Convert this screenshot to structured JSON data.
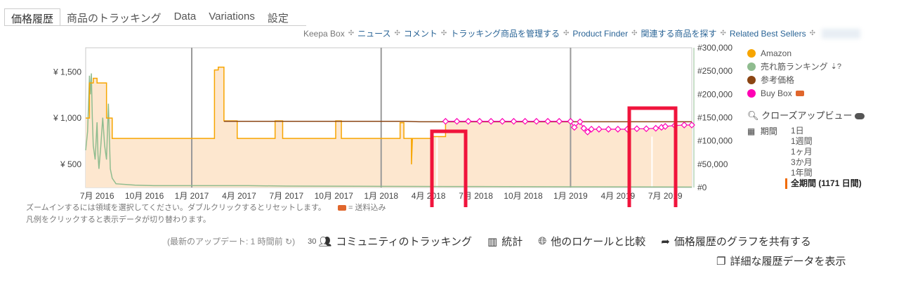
{
  "tabs": [
    "価格履歴",
    "商品のトラッキング",
    "Data",
    "Variations",
    "設定"
  ],
  "links": {
    "keepa_box": "Keepa Box",
    "items": [
      "ニュース",
      "コメント",
      "トラッキング商品を管理する",
      "Product Finder",
      "関連する商品を探す",
      "Related Best Sellers"
    ]
  },
  "legend": {
    "series": [
      {
        "label": "Amazon",
        "color": "#f7a500"
      },
      {
        "label": "売れ筋ランキング",
        "color": "#8fbc8f"
      },
      {
        "label": "参考価格",
        "color": "#8b4513"
      },
      {
        "label": "Buy Box",
        "color": "#ff00b4"
      }
    ],
    "closeup_label": "クローズアップビュー",
    "period_label": "期間",
    "ranges": [
      "1日",
      "1週間",
      "1ヶ月",
      "3か月",
      "1年間"
    ],
    "active_range": "全期間 (1171 日間)"
  },
  "notes": {
    "line1": "ズームインするには領域を選択してください。ダブルクリックするとリセットします。",
    "shipping": "= 送料込み",
    "line2": "凡例をクリックすると表示データが切り替わります。"
  },
  "footer": {
    "update_text": "(最新のアップデート: 1 時間前",
    "community_count": "30",
    "community_label": "コミュニティのトラッキング",
    "stats_label": "統計",
    "compare_label": "他のロケールと比較",
    "share_label": "価格履歴のグラフを共有する",
    "detail_label": "詳細な履歴データを表示"
  },
  "chart_data": {
    "type": "line",
    "x_ticks": [
      "7月 2016",
      "10月 2016",
      "1月 2017",
      "4月 2017",
      "7月 2017",
      "10月 2017",
      "1月 2018",
      "4月 2018",
      "7月 2018",
      "10月 2018",
      "1月 2019",
      "4月 2019",
      "7月 2019"
    ],
    "left_axis": {
      "ticks": [
        "¥ 1,500",
        "¥ 1,000",
        "¥ 500"
      ],
      "tick_values": [
        1500,
        1000,
        500
      ],
      "ylim": [
        250,
        1760
      ]
    },
    "right_axis": {
      "ticks": [
        "#300,000",
        "#250,000",
        "#200,000",
        "#150,000",
        "#100,000",
        "#50,000",
        "#0"
      ],
      "tick_values": [
        300000,
        250000,
        200000,
        150000,
        100000,
        50000,
        0
      ],
      "ylim": [
        0,
        300000
      ]
    },
    "x_range": [
      2016.44,
      2019.64
    ],
    "year_lines": [
      2017.0,
      2018.0,
      2019.0
    ],
    "series": [
      {
        "name": "Amazon",
        "color": "#f7a500",
        "points": [
          [
            2016.44,
            1000
          ],
          [
            2016.46,
            1000
          ],
          [
            2016.46,
            1380
          ],
          [
            2016.48,
            1380
          ],
          [
            2016.48,
            1430
          ],
          [
            2016.5,
            1430
          ],
          [
            2016.5,
            1380
          ],
          [
            2016.55,
            1380
          ],
          [
            2016.55,
            1000
          ],
          [
            2016.58,
            1000
          ],
          [
            2016.58,
            780
          ],
          [
            2017.12,
            780
          ],
          [
            2017.12,
            1520
          ],
          [
            2017.14,
            1520
          ],
          [
            2017.14,
            1550
          ],
          [
            2017.17,
            1550
          ],
          [
            2017.17,
            970
          ],
          [
            2017.24,
            970
          ],
          [
            2017.24,
            780
          ],
          [
            2017.44,
            780
          ],
          [
            2017.44,
            970
          ],
          [
            2017.48,
            970
          ],
          [
            2017.48,
            780
          ],
          [
            2017.76,
            780
          ],
          [
            2017.76,
            970
          ],
          [
            2017.79,
            970
          ],
          [
            2017.79,
            780
          ],
          [
            2018.1,
            780
          ],
          [
            2018.1,
            950
          ],
          [
            2018.12,
            950
          ],
          [
            2018.12,
            780
          ],
          [
            2018.16,
            780
          ],
          [
            2018.16,
            500
          ],
          [
            2018.165,
            780
          ],
          [
            2018.27,
            780
          ],
          [
            2018.27,
            800
          ],
          [
            2018.34,
            800
          ],
          [
            2018.34,
            960
          ]
        ]
      },
      {
        "name": "売れ筋ランキング",
        "color": "#8fbc8f",
        "points": [
          [
            2016.44,
            80000
          ],
          [
            2016.45,
            120000
          ],
          [
            2016.455,
            180000
          ],
          [
            2016.46,
            240000
          ],
          [
            2016.465,
            200000
          ],
          [
            2016.47,
            245000
          ],
          [
            2016.475,
            150000
          ],
          [
            2016.48,
            90000
          ],
          [
            2016.49,
            60000
          ],
          [
            2016.5,
            140000
          ],
          [
            2016.505,
            70000
          ],
          [
            2016.51,
            40000
          ],
          [
            2016.52,
            90000
          ],
          [
            2016.53,
            150000
          ],
          [
            2016.54,
            90000
          ],
          [
            2016.55,
            60000
          ],
          [
            2016.56,
            180000
          ],
          [
            2016.57,
            40000
          ],
          [
            2016.58,
            20000
          ],
          [
            2016.6,
            8000
          ],
          [
            2016.7,
            5000
          ],
          [
            2016.8,
            4000
          ],
          [
            2017.0,
            4000
          ],
          [
            2017.3,
            4000
          ],
          [
            2017.5,
            3000
          ],
          [
            2018.0,
            2500
          ],
          [
            2018.5,
            2000
          ],
          [
            2019.0,
            1500
          ],
          [
            2019.64,
            1000
          ]
        ]
      },
      {
        "name": "参考価格",
        "color": "#8b4513",
        "points": [
          [
            2017.17,
            965
          ],
          [
            2018.12,
            965
          ],
          [
            2018.2,
            960
          ],
          [
            2018.5,
            960
          ],
          [
            2019.64,
            960
          ]
        ]
      },
      {
        "name": "Buy Box",
        "color": "#ff00b4",
        "points": [
          [
            2018.34,
            965
          ],
          [
            2018.4,
            965
          ],
          [
            2018.46,
            965
          ],
          [
            2018.52,
            965
          ],
          [
            2018.58,
            965
          ],
          [
            2018.64,
            965
          ],
          [
            2018.7,
            965
          ],
          [
            2018.76,
            965
          ],
          [
            2018.82,
            965
          ],
          [
            2018.88,
            965
          ],
          [
            2018.94,
            965
          ],
          [
            2019.0,
            965
          ],
          [
            2019.02,
            900
          ],
          [
            2019.05,
            960
          ],
          [
            2019.07,
            890
          ],
          [
            2019.09,
            850
          ],
          [
            2019.11,
            880
          ],
          [
            2019.15,
            880
          ],
          [
            2019.2,
            880
          ],
          [
            2019.25,
            880
          ],
          [
            2019.3,
            880
          ],
          [
            2019.35,
            885
          ],
          [
            2019.4,
            885
          ],
          [
            2019.45,
            890
          ],
          [
            2019.48,
            900
          ],
          [
            2019.5,
            910
          ],
          [
            2019.55,
            920
          ],
          [
            2019.6,
            925
          ],
          [
            2019.64,
            925
          ]
        ]
      }
    ],
    "highlights": [
      [
        2018.25,
        2018.34
      ],
      [
        2019.36,
        2019.5
      ]
    ]
  }
}
